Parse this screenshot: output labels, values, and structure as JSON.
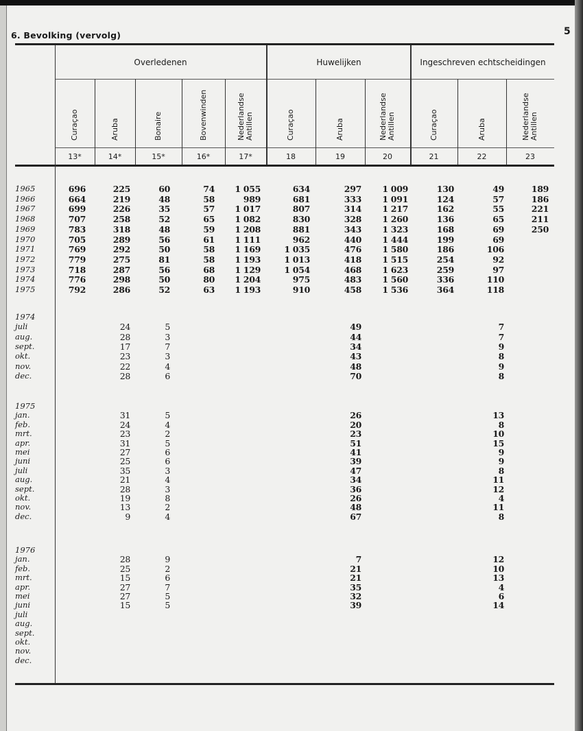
{
  "header": {
    "title": "6. Bevolking (vervolg)",
    "page_number": "5"
  },
  "groups": {
    "overledenen": "Overledenen",
    "huwelijken": "Huwelijken",
    "echtscheidingen": "Ingeschreven echtscheidingen"
  },
  "columns": [
    {
      "num": "13*",
      "label": [
        "Curaçao"
      ]
    },
    {
      "num": "14*",
      "label": [
        "Aruba"
      ]
    },
    {
      "num": "15*",
      "label": [
        "Bonaire"
      ]
    },
    {
      "num": "16*",
      "label": [
        "Bovenwinden"
      ]
    },
    {
      "num": "17*",
      "label": [
        "Nederlandse",
        "Antillen"
      ]
    },
    {
      "num": "18",
      "label": [
        "Curaçao"
      ]
    },
    {
      "num": "19",
      "label": [
        "Aruba"
      ]
    },
    {
      "num": "20",
      "label": [
        "Nederlandse",
        "Antillen"
      ]
    },
    {
      "num": "21",
      "label": [
        "Curaçao"
      ]
    },
    {
      "num": "22",
      "label": [
        "Aruba"
      ]
    },
    {
      "num": "23",
      "label": [
        "Nederlandse",
        "Antillen"
      ]
    }
  ],
  "annual": [
    {
      "year": "1965",
      "values": [
        "696",
        "225",
        "60",
        "74",
        "1 055",
        "634",
        "297",
        "1 009",
        "130",
        "49",
        "189"
      ]
    },
    {
      "year": "1966",
      "values": [
        "664",
        "219",
        "48",
        "58",
        "989",
        "681",
        "333",
        "1 091",
        "124",
        "57",
        "186"
      ]
    },
    {
      "year": "1967",
      "values": [
        "699",
        "226",
        "35",
        "57",
        "1 017",
        "807",
        "314",
        "1 217",
        "162",
        "55",
        "221"
      ]
    },
    {
      "year": "1968",
      "values": [
        "707",
        "258",
        "52",
        "65",
        "1 082",
        "830",
        "328",
        "1 260",
        "136",
        "65",
        "211"
      ]
    },
    {
      "year": "1969",
      "values": [
        "783",
        "318",
        "48",
        "59",
        "1 208",
        "881",
        "343",
        "1 323",
        "168",
        "69",
        "250"
      ]
    },
    {
      "year": "1970",
      "values": [
        "705",
        "289",
        "56",
        "61",
        "1 111",
        "962",
        "440",
        "1 444",
        "199",
        "69",
        ""
      ]
    },
    {
      "year": "1971",
      "values": [
        "769",
        "292",
        "50",
        "58",
        "1 169",
        "1 035",
        "476",
        "1 580",
        "186",
        "106",
        ""
      ]
    },
    {
      "year": "1972",
      "values": [
        "779",
        "275",
        "81",
        "58",
        "1 193",
        "1 013",
        "418",
        "1 515",
        "254",
        "92",
        ""
      ]
    },
    {
      "year": "1973",
      "values": [
        "718",
        "287",
        "56",
        "68",
        "1 129",
        "1 054",
        "468",
        "1 623",
        "259",
        "97",
        ""
      ]
    },
    {
      "year": "1974",
      "values": [
        "776",
        "298",
        "50",
        "80",
        "1 204",
        "975",
        "483",
        "1 560",
        "336",
        "110",
        ""
      ]
    },
    {
      "year": "1975",
      "values": [
        "792",
        "286",
        "52",
        "63",
        "1 193",
        "910",
        "458",
        "1 536",
        "364",
        "118",
        ""
      ]
    }
  ],
  "monthly": [
    {
      "year": "1974",
      "months": [
        {
          "m": "juli",
          "v": [
            "24",
            "5",
            "49",
            "7"
          ]
        },
        {
          "m": "aug.",
          "v": [
            "28",
            "3",
            "44",
            "7"
          ]
        },
        {
          "m": "sept.",
          "v": [
            "17",
            "7",
            "34",
            "9"
          ]
        },
        {
          "m": "okt.",
          "v": [
            "23",
            "3",
            "43",
            "8"
          ]
        },
        {
          "m": "nov.",
          "v": [
            "22",
            "4",
            "48",
            "9"
          ]
        },
        {
          "m": "dec.",
          "v": [
            "28",
            "6",
            "70",
            "8"
          ]
        }
      ]
    },
    {
      "year": "1975",
      "months": [
        {
          "m": "jan.",
          "v": [
            "31",
            "5",
            "26",
            "13"
          ]
        },
        {
          "m": "feb.",
          "v": [
            "24",
            "4",
            "20",
            "8"
          ]
        },
        {
          "m": "mrt.",
          "v": [
            "23",
            "2",
            "23",
            "10"
          ]
        },
        {
          "m": "apr.",
          "v": [
            "31",
            "5",
            "51",
            "15"
          ]
        },
        {
          "m": "mei",
          "v": [
            "27",
            "6",
            "41",
            "9"
          ]
        },
        {
          "m": "juni",
          "v": [
            "25",
            "6",
            "39",
            "9"
          ]
        },
        {
          "m": "juli",
          "v": [
            "35",
            "3",
            "47",
            "8"
          ]
        },
        {
          "m": "aug.",
          "v": [
            "21",
            "4",
            "34",
            "11"
          ]
        },
        {
          "m": "sept.",
          "v": [
            "28",
            "3",
            "36",
            "12"
          ]
        },
        {
          "m": "okt.",
          "v": [
            "19",
            "8",
            "26",
            "4"
          ]
        },
        {
          "m": "nov.",
          "v": [
            "13",
            "2",
            "48",
            "11"
          ]
        },
        {
          "m": "dec.",
          "v": [
            "9",
            "4",
            "67",
            "8"
          ]
        }
      ]
    },
    {
      "year": "1976",
      "months": [
        {
          "m": "jan.",
          "v": [
            "28",
            "9",
            "7",
            "12"
          ]
        },
        {
          "m": "feb.",
          "v": [
            "25",
            "2",
            "21",
            "10"
          ]
        },
        {
          "m": "mrt.",
          "v": [
            "15",
            "6",
            "21",
            "13"
          ]
        },
        {
          "m": "apr.",
          "v": [
            "27",
            "7",
            "35",
            "4"
          ]
        },
        {
          "m": "mei",
          "v": [
            "27",
            "5",
            "32",
            "6"
          ]
        },
        {
          "m": "juni",
          "v": [
            "15",
            "5",
            "39",
            "14"
          ]
        },
        {
          "m": "juli",
          "v": [
            "",
            "",
            "",
            ""
          ]
        },
        {
          "m": "aug.",
          "v": [
            "",
            "",
            "",
            ""
          ]
        },
        {
          "m": "sept.",
          "v": [
            "",
            "",
            "",
            ""
          ]
        },
        {
          "m": "okt.",
          "v": [
            "",
            "",
            "",
            ""
          ]
        },
        {
          "m": "nov.",
          "v": [
            "",
            "",
            "",
            ""
          ]
        },
        {
          "m": "dec.",
          "v": [
            "",
            "",
            "",
            ""
          ]
        }
      ]
    }
  ]
}
